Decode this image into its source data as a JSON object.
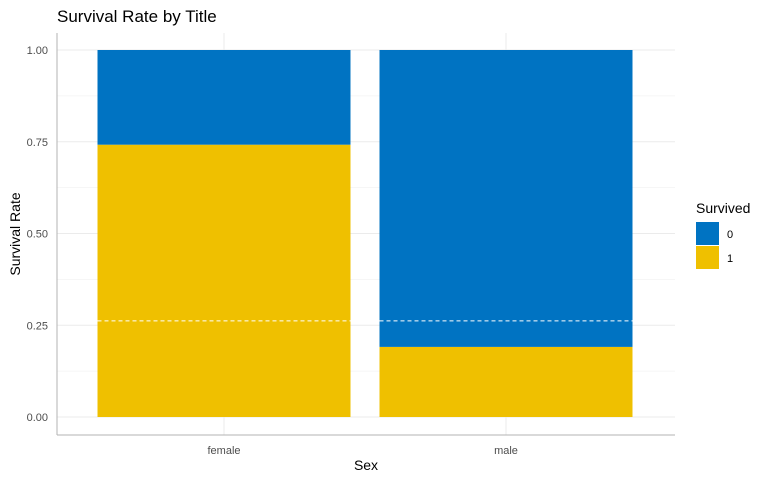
{
  "chart_data": {
    "type": "bar",
    "stacked": true,
    "title": "Survival Rate by Title",
    "xlabel": "Sex",
    "ylabel": "Survival Rate",
    "ylim": [
      0,
      1
    ],
    "y_ticks": [
      "0.00",
      "0.25",
      "0.50",
      "0.75",
      "1.00"
    ],
    "categories": [
      "female",
      "male"
    ],
    "series": [
      {
        "name": "0",
        "values": [
          0.258,
          0.809
        ],
        "color": "#0073C2"
      },
      {
        "name": "1",
        "values": [
          0.742,
          0.191
        ],
        "color": "#EFC000"
      }
    ],
    "reference_line": {
      "y": 0.262,
      "style": "dashed",
      "color": "#ffffff"
    },
    "legend": {
      "title": "Survived",
      "position": "right"
    },
    "grid": true
  }
}
